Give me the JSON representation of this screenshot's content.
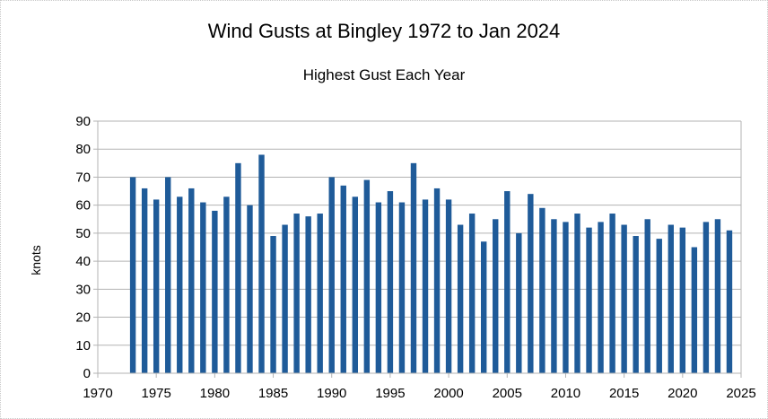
{
  "chart_data": {
    "type": "bar",
    "title": "Wind Gusts at Bingley 1972 to Jan 2024",
    "subtitle": "Highest Gust Each Year",
    "xlabel": "",
    "ylabel": "knots",
    "xlim": [
      1970,
      2025
    ],
    "ylim": [
      0,
      90
    ],
    "x_ticks": [
      1970,
      1975,
      1980,
      1985,
      1990,
      1995,
      2000,
      2005,
      2010,
      2015,
      2020,
      2025
    ],
    "y_ticks": [
      0,
      10,
      20,
      30,
      40,
      50,
      60,
      70,
      80,
      90
    ],
    "grid": true,
    "bar_color": "#1f5b99",
    "series": [
      {
        "x": [
          1973,
          1974,
          1975,
          1976,
          1977,
          1978,
          1979,
          1980,
          1981,
          1982,
          1983,
          1984,
          1985,
          1986,
          1987,
          1988,
          1989,
          1990,
          1991,
          1992,
          1993,
          1994,
          1995,
          1996,
          1997,
          1998,
          1999,
          2000,
          2001,
          2002,
          2003,
          2004,
          2005,
          2006,
          2007,
          2008,
          2009,
          2010,
          2011,
          2012,
          2013,
          2014,
          2015,
          2016,
          2017,
          2018,
          2019,
          2020,
          2021,
          2022,
          2023,
          2024
        ],
        "values": [
          70,
          66,
          62,
          70,
          63,
          66,
          61,
          58,
          63,
          75,
          60,
          78,
          49,
          53,
          57,
          56,
          57,
          70,
          67,
          63,
          69,
          61,
          65,
          61,
          75,
          62,
          66,
          62,
          53,
          57,
          47,
          55,
          65,
          50,
          64,
          59,
          55,
          54,
          57,
          52,
          54,
          57,
          53,
          49,
          55,
          48,
          53,
          52,
          45,
          54,
          55,
          51
        ]
      }
    ]
  }
}
